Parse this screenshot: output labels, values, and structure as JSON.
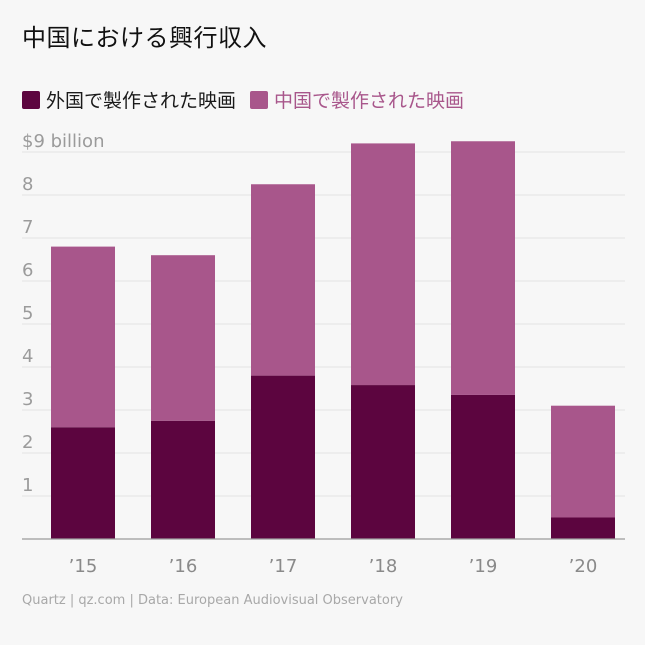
{
  "title": "中国における興行収入",
  "legend": {
    "foreign_label": "外国で製作された映画",
    "domestic_label": "中国で製作された映画"
  },
  "colors": {
    "foreign": "#5c053f",
    "domestic": "#a8568b",
    "grid": "#e3e3e3",
    "axis": "#9a9a9a"
  },
  "footer": "Quartz | qz.com | Data: European Audiovisual Observatory",
  "chart_data": {
    "type": "bar",
    "stacked": true,
    "title": "中国における興行収入",
    "categories": [
      "’15",
      "’16",
      "’17",
      "’18",
      "’19",
      "’20"
    ],
    "series": [
      {
        "name": "外国で製作された映画",
        "values": [
          2.6,
          2.75,
          3.8,
          3.58,
          3.35,
          0.5
        ]
      },
      {
        "name": "中国で製作された映画",
        "values": [
          4.2,
          3.85,
          4.45,
          5.62,
          5.9,
          2.6
        ]
      }
    ],
    "ylim": [
      0,
      9
    ],
    "yticks": [
      {
        "value": 1,
        "label": "1"
      },
      {
        "value": 2,
        "label": "2"
      },
      {
        "value": 3,
        "label": "3"
      },
      {
        "value": 4,
        "label": "4"
      },
      {
        "value": 5,
        "label": "5"
      },
      {
        "value": 6,
        "label": "6"
      },
      {
        "value": 7,
        "label": "7"
      },
      {
        "value": 8,
        "label": "8"
      },
      {
        "value": 9,
        "label": "$9 billion"
      }
    ],
    "grid": true,
    "legend_position": "top-left"
  }
}
